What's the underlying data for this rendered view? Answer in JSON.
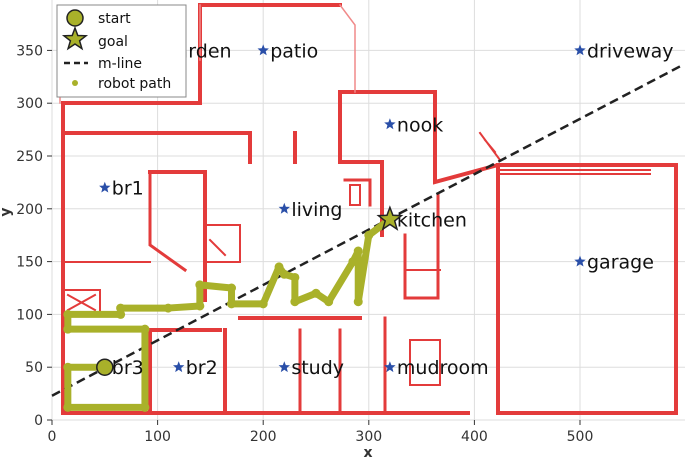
{
  "chart_data": {
    "type": "scatter",
    "xlabel": "x",
    "ylabel": "y",
    "xlim": [
      0,
      595
    ],
    "ylim": [
      0,
      395
    ],
    "x_ticks": [
      0,
      100,
      200,
      300,
      400,
      500
    ],
    "y_ticks": [
      0,
      50,
      100,
      150,
      200,
      250,
      300,
      350
    ],
    "grid": true,
    "legend_position": "top-left",
    "legend": [
      {
        "label": "start",
        "marker": "circle"
      },
      {
        "label": "goal",
        "marker": "star"
      },
      {
        "label": "m-line",
        "marker": "dashed-line"
      },
      {
        "label": "robot path",
        "marker": "dot"
      }
    ],
    "locations": [
      {
        "name": "garden",
        "x": 100,
        "y": 350
      },
      {
        "name": "patio",
        "x": 200,
        "y": 350
      },
      {
        "name": "driveway",
        "x": 500,
        "y": 350
      },
      {
        "name": "nook",
        "x": 320,
        "y": 280
      },
      {
        "name": "br1",
        "x": 50,
        "y": 220
      },
      {
        "name": "living",
        "x": 220,
        "y": 200
      },
      {
        "name": "kitchen",
        "x": 320,
        "y": 190
      },
      {
        "name": "garage",
        "x": 500,
        "y": 150
      },
      {
        "name": "br3",
        "x": 50,
        "y": 50
      },
      {
        "name": "br2",
        "x": 120,
        "y": 50
      },
      {
        "name": "study",
        "x": 220,
        "y": 50
      },
      {
        "name": "mudroom",
        "x": 320,
        "y": 50
      }
    ],
    "start": {
      "x": 50,
      "y": 50
    },
    "goal": {
      "x": 320,
      "y": 190
    },
    "m_line": [
      {
        "x": 0,
        "y": 23
      },
      {
        "x": 595,
        "y": 335
      }
    ],
    "robot_path": [
      {
        "x": 50,
        "y": 50
      },
      {
        "x": 15,
        "y": 50
      },
      {
        "x": 15,
        "y": 12
      },
      {
        "x": 88,
        "y": 12
      },
      {
        "x": 88,
        "y": 86
      },
      {
        "x": 15,
        "y": 86
      },
      {
        "x": 15,
        "y": 100
      },
      {
        "x": 65,
        "y": 100
      },
      {
        "x": 65,
        "y": 106
      },
      {
        "x": 110,
        "y": 106
      },
      {
        "x": 140,
        "y": 108
      },
      {
        "x": 140,
        "y": 128
      },
      {
        "x": 170,
        "y": 125
      },
      {
        "x": 170,
        "y": 110
      },
      {
        "x": 200,
        "y": 110
      },
      {
        "x": 215,
        "y": 145
      },
      {
        "x": 220,
        "y": 138
      },
      {
        "x": 230,
        "y": 135
      },
      {
        "x": 230,
        "y": 112
      },
      {
        "x": 250,
        "y": 120
      },
      {
        "x": 262,
        "y": 112
      },
      {
        "x": 285,
        "y": 150
      },
      {
        "x": 290,
        "y": 160
      },
      {
        "x": 290,
        "y": 112
      },
      {
        "x": 300,
        "y": 175
      },
      {
        "x": 320,
        "y": 190
      }
    ]
  }
}
